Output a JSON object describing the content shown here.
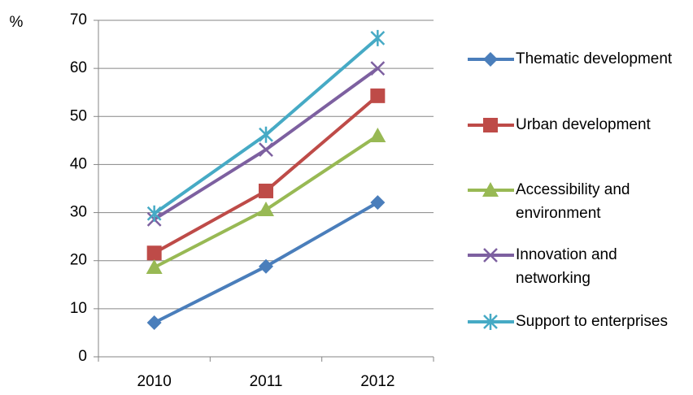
{
  "chart_data": {
    "type": "line",
    "y_label": "%",
    "categories": [
      "2010",
      "2011",
      "2012"
    ],
    "ylim": [
      0,
      70
    ],
    "yticks": [
      0,
      10,
      20,
      30,
      40,
      50,
      60,
      70
    ],
    "grid": true,
    "series": [
      {
        "name": "Thematic development",
        "color": "#4a7ebb",
        "marker": "diamond",
        "values": [
          7.1,
          18.8,
          32.1
        ]
      },
      {
        "name": "Urban development",
        "color": "#be4b48",
        "marker": "square",
        "values": [
          21.6,
          34.5,
          54.3
        ]
      },
      {
        "name": "Accessibility and environment",
        "color": "#98b954",
        "marker": "triangle",
        "values": [
          18.6,
          30.6,
          46
        ]
      },
      {
        "name": "Innovation and networking",
        "color": "#7d60a0",
        "marker": "x",
        "values": [
          28.6,
          43.1,
          60
        ]
      },
      {
        "name": "Support to enterprises",
        "color": "#46aac5",
        "marker": "star",
        "values": [
          29.8,
          46.2,
          66.3
        ]
      }
    ]
  }
}
